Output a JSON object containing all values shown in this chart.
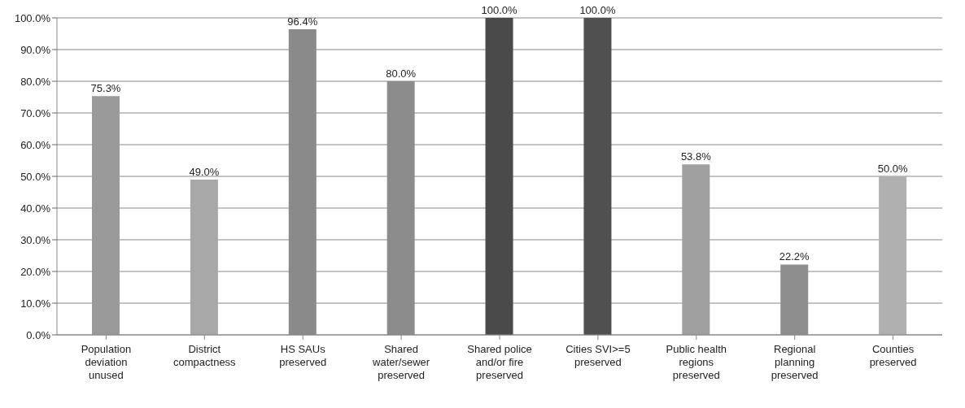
{
  "chart_data": {
    "type": "bar",
    "categories": [
      "Population deviation unused",
      "District compactness",
      "HS SAUs preserved",
      "Shared water/sewer preserved",
      "Shared police and/or fire preserved",
      "Cities SVI>=5 preserved",
      "Public health regions preserved",
      "Regional planning preserved",
      "Counties preserved"
    ],
    "values": [
      75.3,
      49.0,
      96.4,
      80.0,
      100.0,
      100.0,
      53.8,
      22.2,
      50.0
    ],
    "value_labels": [
      "75.3%",
      "49.0%",
      "96.4%",
      "80.0%",
      "100.0%",
      "100.0%",
      "53.8%",
      "22.2%",
      "50.0%"
    ],
    "colors": [
      "#9a9a9a",
      "#a8a8a8",
      "#8a8a8a",
      "#8c8c8c",
      "#4a4a4a",
      "#505050",
      "#a0a0a0",
      "#8e8e8e",
      "#b0b0b0"
    ],
    "ylim": [
      0,
      100
    ],
    "yticks": [
      {
        "value": 0,
        "label": "0.0%"
      },
      {
        "value": 10,
        "label": "10.0%"
      },
      {
        "value": 20,
        "label": "20.0%"
      },
      {
        "value": 30,
        "label": "30.0%"
      },
      {
        "value": 40,
        "label": "40.0%"
      },
      {
        "value": 50,
        "label": "50.0%"
      },
      {
        "value": 60,
        "label": "60.0%"
      },
      {
        "value": 70,
        "label": "70.0%"
      },
      {
        "value": 80,
        "label": "80.0%"
      },
      {
        "value": 90,
        "label": "90.0%"
      },
      {
        "value": 100,
        "label": "100.0%"
      }
    ],
    "grid": "y"
  }
}
